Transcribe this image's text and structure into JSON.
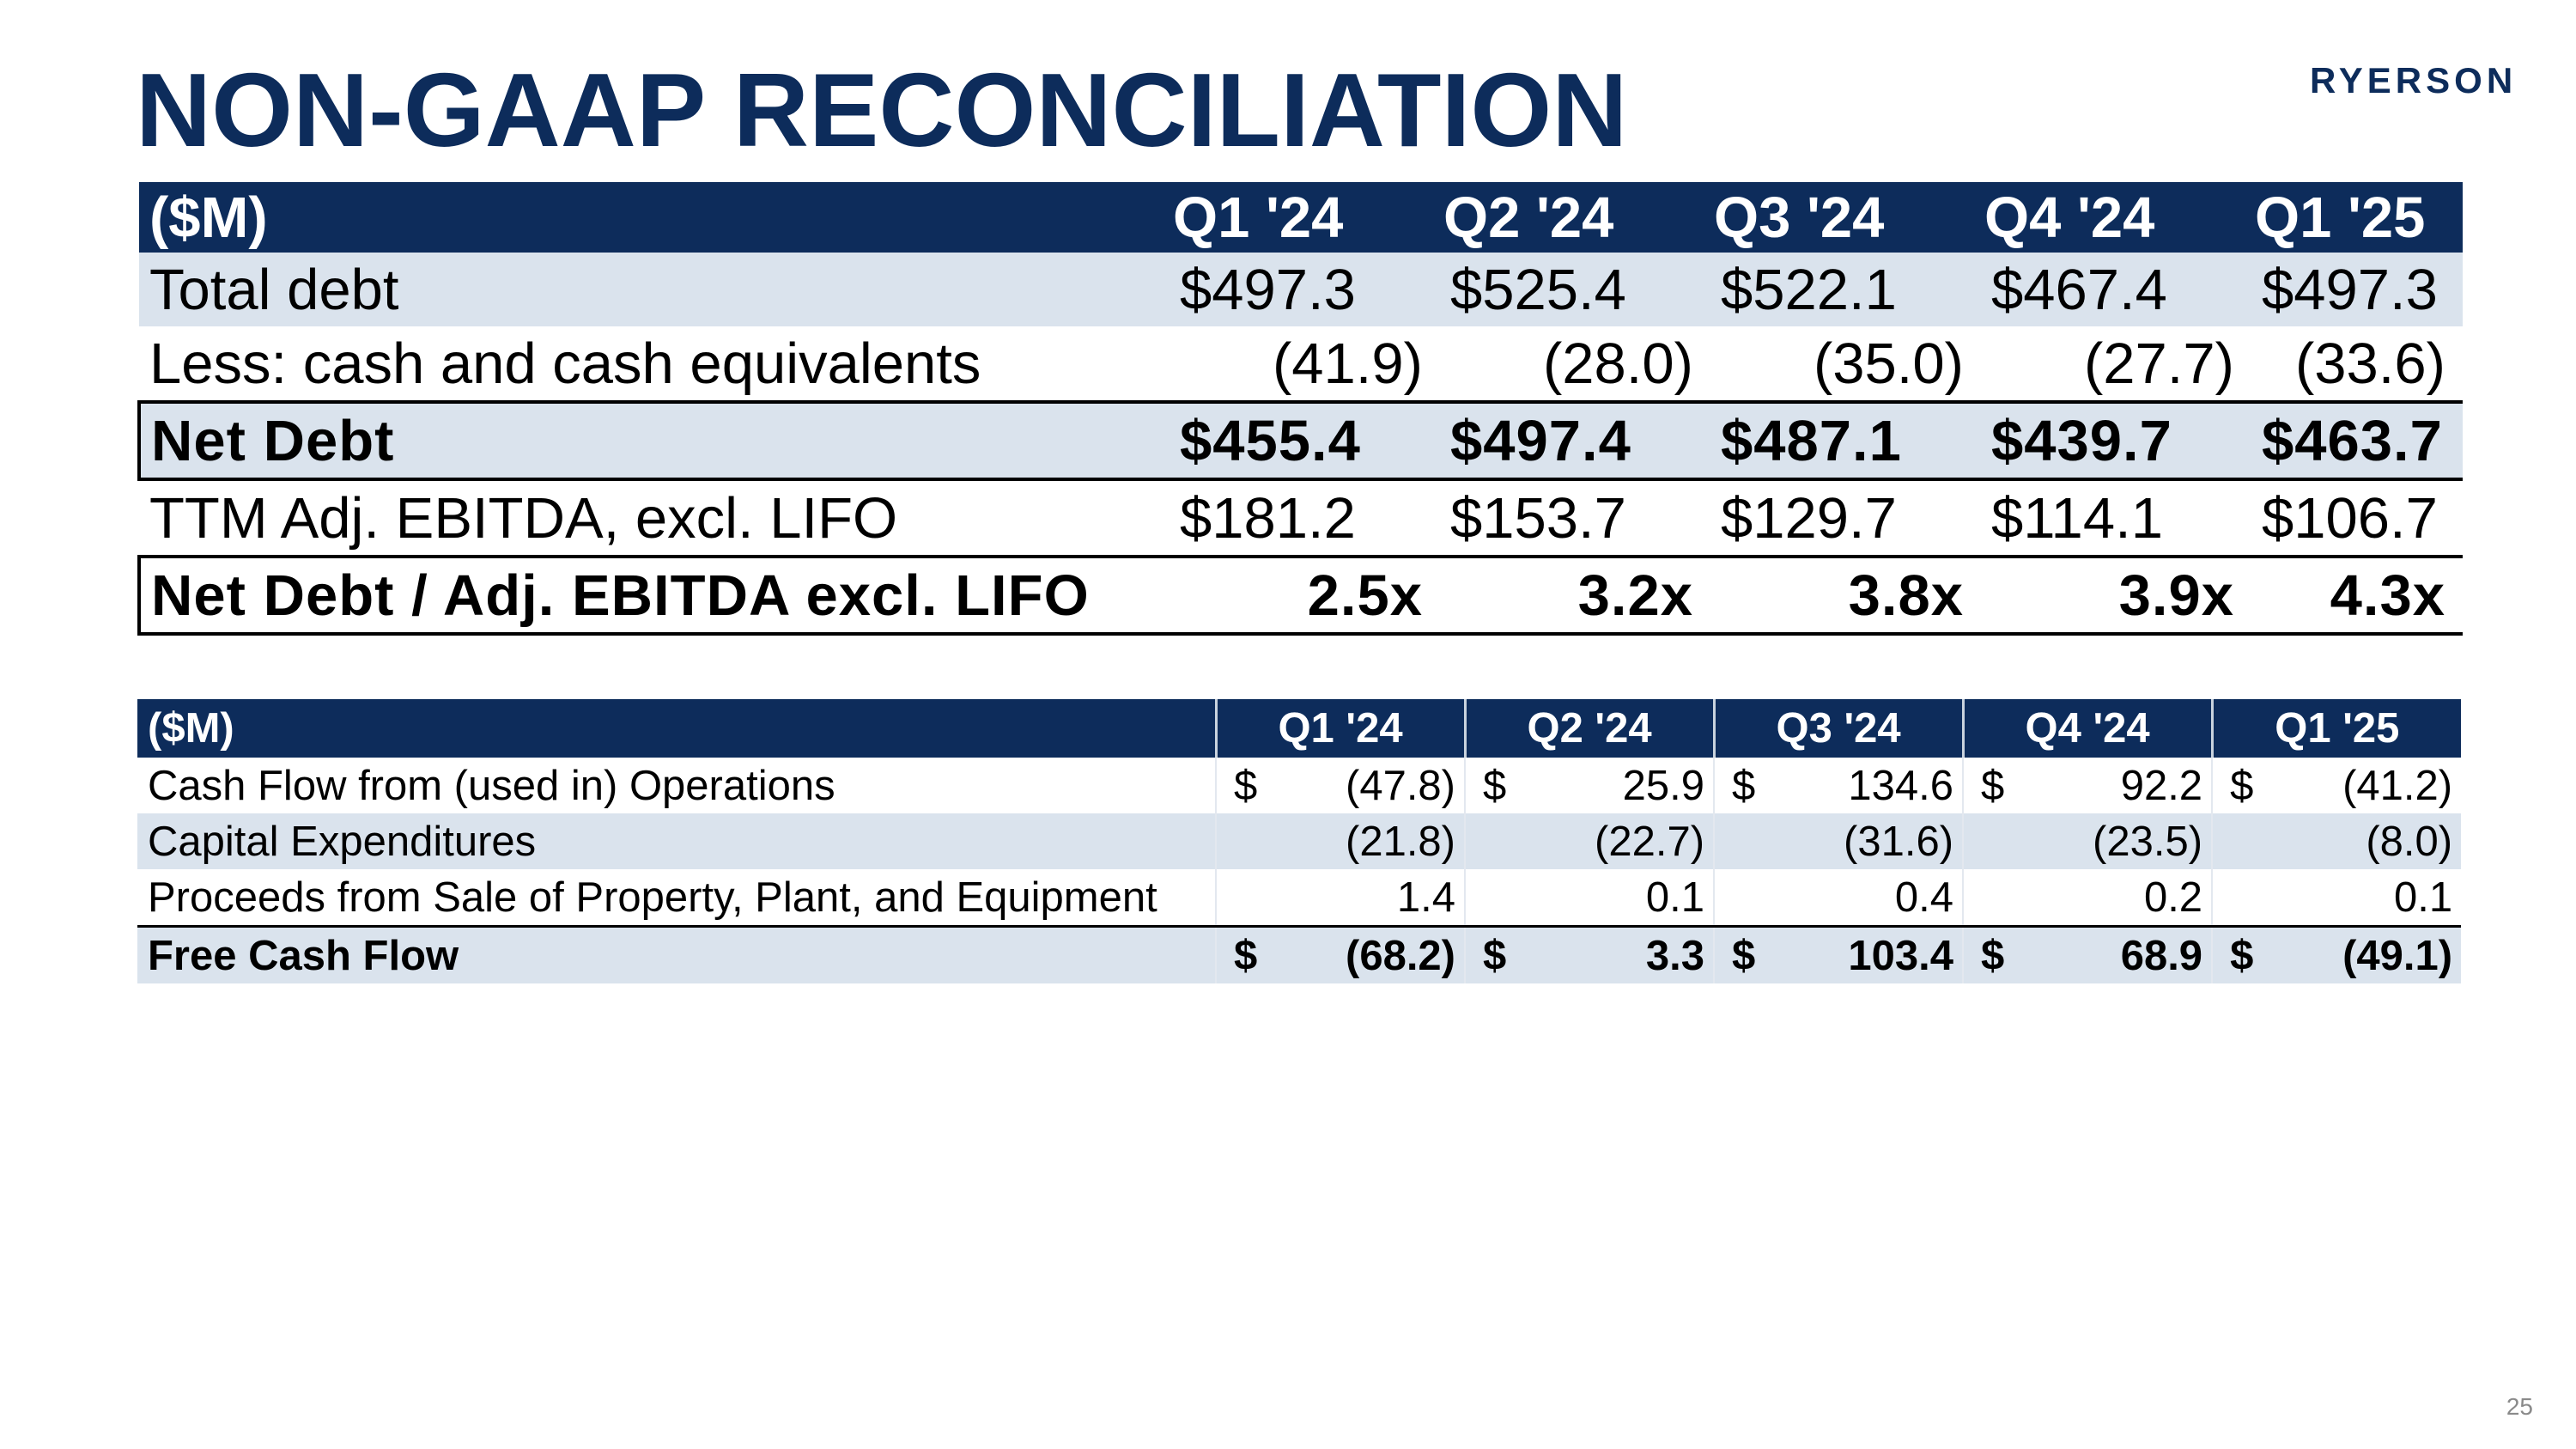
{
  "header": {
    "title": "NON-GAAP RECONCILIATION",
    "logo_text": "RYERSON"
  },
  "table1": {
    "columns": [
      "($M)",
      "Q1 '24",
      "Q2 '24",
      "Q3 '24",
      "Q4 '24",
      "Q1 '25"
    ],
    "rows": [
      {
        "label": "Total debt",
        "values": [
          "$497.3",
          "$525.4",
          "$522.1",
          "$467.4",
          "$497.3"
        ]
      },
      {
        "label": "Less: cash and cash equivalents",
        "values": [
          "(41.9)",
          "(28.0)",
          "(35.0)",
          "(27.7)",
          "(33.6)"
        ]
      },
      {
        "label": "Net Debt",
        "values": [
          "$455.4",
          "$497.4",
          "$487.1",
          "$439.7",
          "$463.7"
        ]
      },
      {
        "label": "TTM Adj. EBITDA, excl. LIFO",
        "values": [
          "$181.2",
          "$153.7",
          "$129.7",
          "$114.1",
          "$106.7"
        ]
      },
      {
        "label": "Net Debt / Adj. EBITDA excl. LIFO",
        "values": [
          "2.5x",
          "3.2x",
          "3.8x",
          "3.9x",
          "4.3x"
        ]
      }
    ]
  },
  "table2": {
    "columns": [
      "($M)",
      "Q1 '24",
      "Q2 '24",
      "Q3 '24",
      "Q4 '24",
      "Q1 '25"
    ],
    "rows": [
      {
        "label": "Cash Flow from (used in) Operations",
        "currency": [
          "$",
          "$",
          "$",
          "$",
          "$"
        ],
        "values": [
          "(47.8)",
          "25.9",
          "134.6",
          "92.2",
          "(41.2)"
        ]
      },
      {
        "label": "Capital Expenditures",
        "currency": [
          "",
          "",
          "",
          "",
          ""
        ],
        "values": [
          "(21.8)",
          "(22.7)",
          "(31.6)",
          "(23.5)",
          "(8.0)"
        ]
      },
      {
        "label": "Proceeds from Sale of Property, Plant, and Equipment",
        "currency": [
          "",
          "",
          "",
          "",
          ""
        ],
        "values": [
          "1.4",
          "0.1",
          "0.4",
          "0.2",
          "0.1"
        ]
      },
      {
        "label": "Free Cash Flow",
        "currency": [
          "$",
          "$",
          "$",
          "$",
          "$"
        ],
        "values": [
          "(68.2)",
          "3.3",
          "103.4",
          "68.9",
          "(49.1)"
        ]
      }
    ]
  },
  "footer": {
    "page_number": "25"
  },
  "colors": {
    "brand_navy": "#0d2c5b",
    "row_shade": "#dae3ed"
  }
}
